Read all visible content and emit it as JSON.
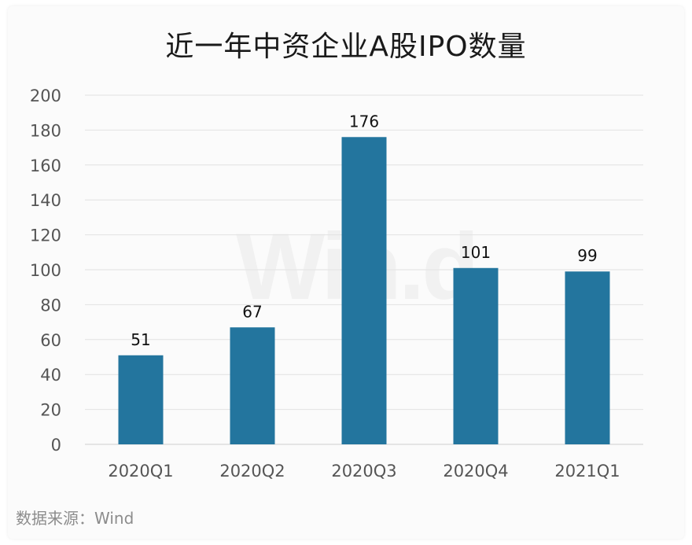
{
  "title": "近一年中资企业A股IPO数量",
  "source": "数据来源：Wind",
  "watermark": "Win.d",
  "colors": {
    "bar": "#23759e",
    "grid": "#e2e2e2",
    "axis_text": "#555555"
  },
  "chart_data": {
    "type": "bar",
    "title": "近一年中资企业A股IPO数量",
    "categories": [
      "2020Q1",
      "2020Q2",
      "2020Q3",
      "2020Q4",
      "2021Q1"
    ],
    "values": [
      51,
      67,
      176,
      101,
      99
    ],
    "ylim": [
      0,
      200
    ],
    "yticks": [
      0,
      20,
      40,
      60,
      80,
      100,
      120,
      140,
      160,
      180,
      200
    ],
    "grid": true,
    "legend": "none",
    "xlabel": "",
    "ylabel": ""
  }
}
